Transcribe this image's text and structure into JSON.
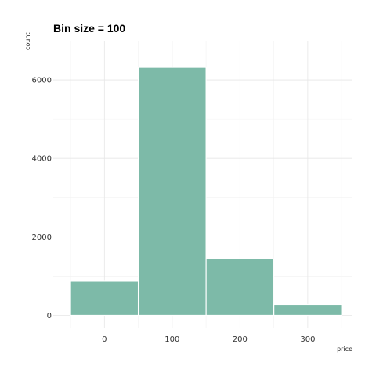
{
  "chart_data": {
    "type": "bar",
    "title": "Bin size = 100",
    "xlabel": "price",
    "ylabel": "count",
    "bin_width": 100,
    "bins": [
      {
        "center": 0,
        "value": 870
      },
      {
        "center": 100,
        "value": 6320
      },
      {
        "center": 200,
        "value": 1440
      },
      {
        "center": 300,
        "value": 280
      }
    ],
    "xlim": [
      -50,
      350
    ],
    "ylim": [
      0,
      6320
    ],
    "x_ticks": [
      0,
      100,
      200,
      300
    ],
    "y_ticks": [
      0,
      2000,
      4000,
      6000
    ],
    "bar_color": "#7dbaa8",
    "grid": true
  }
}
